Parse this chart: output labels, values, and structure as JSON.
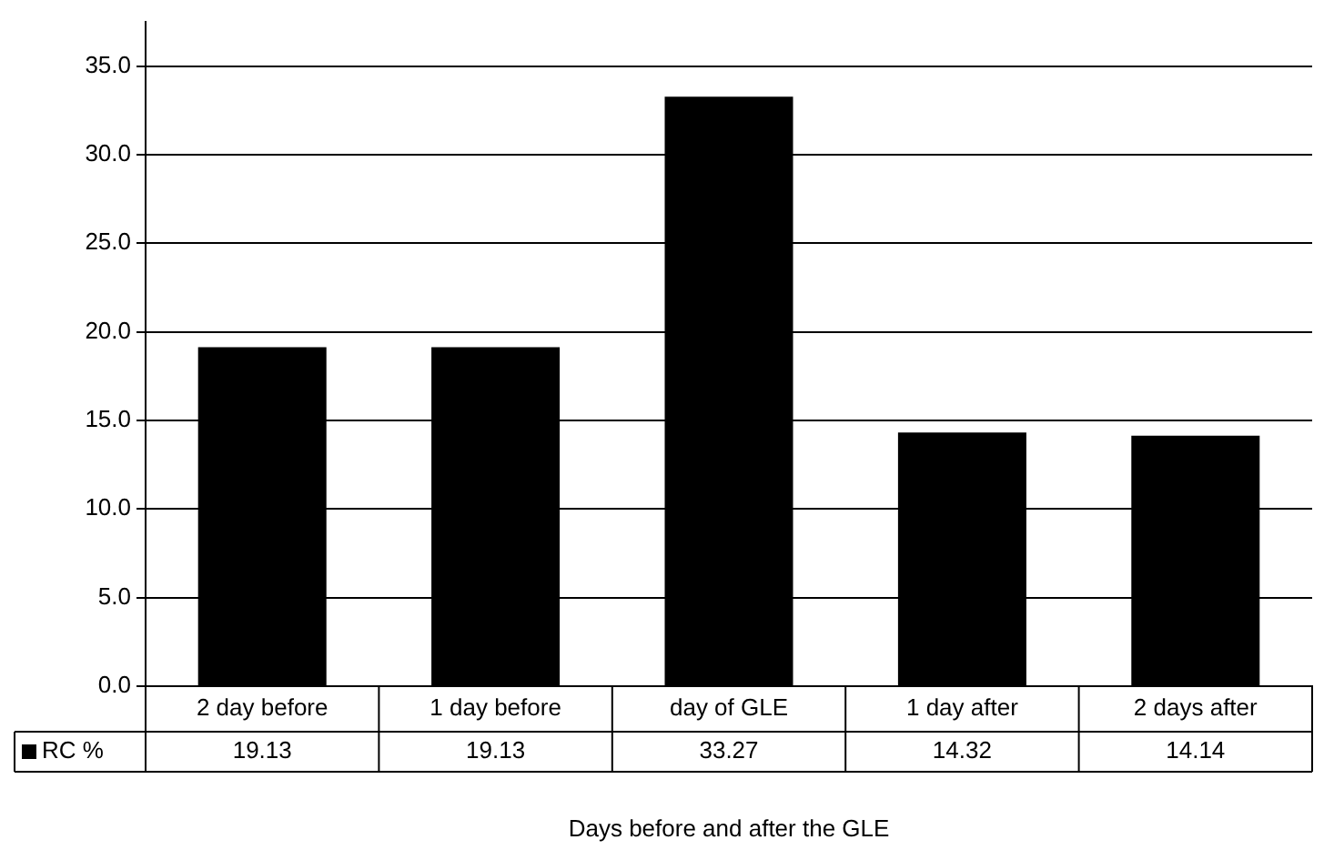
{
  "chart_data": {
    "type": "bar",
    "xlabel": "Days before and after the GLE",
    "categories": [
      "2 day before",
      "1 day before",
      "day of GLE",
      "1 day after",
      "2 days after"
    ],
    "series": [
      {
        "name": "RC %",
        "color": "#000000",
        "values": [
          19.13,
          19.13,
          33.27,
          14.32,
          14.14
        ]
      }
    ],
    "ylim": [
      0,
      37.5
    ],
    "yticks": [
      {
        "value": 0,
        "label": "0.0"
      },
      {
        "value": 5,
        "label": "5.0"
      },
      {
        "value": 10,
        "label": "10.0"
      },
      {
        "value": 15,
        "label": "15.0"
      },
      {
        "value": 20,
        "label": "20.0"
      },
      {
        "value": 25,
        "label": "25.0"
      },
      {
        "value": 30,
        "label": "30.0"
      },
      {
        "value": 35,
        "label": "35.0"
      }
    ],
    "grid": "y",
    "legend": "bottom left",
    "data_labels": true
  }
}
